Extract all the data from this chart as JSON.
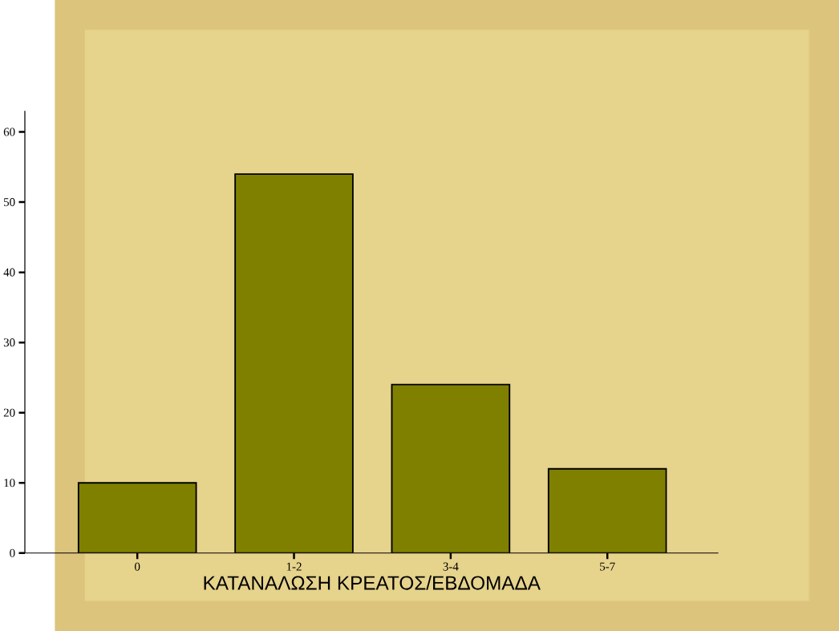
{
  "chart_data": {
    "type": "bar",
    "xlabel": "ΚΑΤΑΝΑΛΩΣΗ ΚΡΕΑΤΟΣ/ΕΒΔΟΜΑΔΑ",
    "categories": [
      "0",
      "1-2",
      "3-4",
      "5-7"
    ],
    "values": [
      10,
      54,
      24,
      12
    ],
    "color": "#808000",
    "ylim": [
      0,
      63
    ],
    "yticks": [
      0,
      10,
      20,
      30,
      40,
      50,
      60
    ]
  }
}
